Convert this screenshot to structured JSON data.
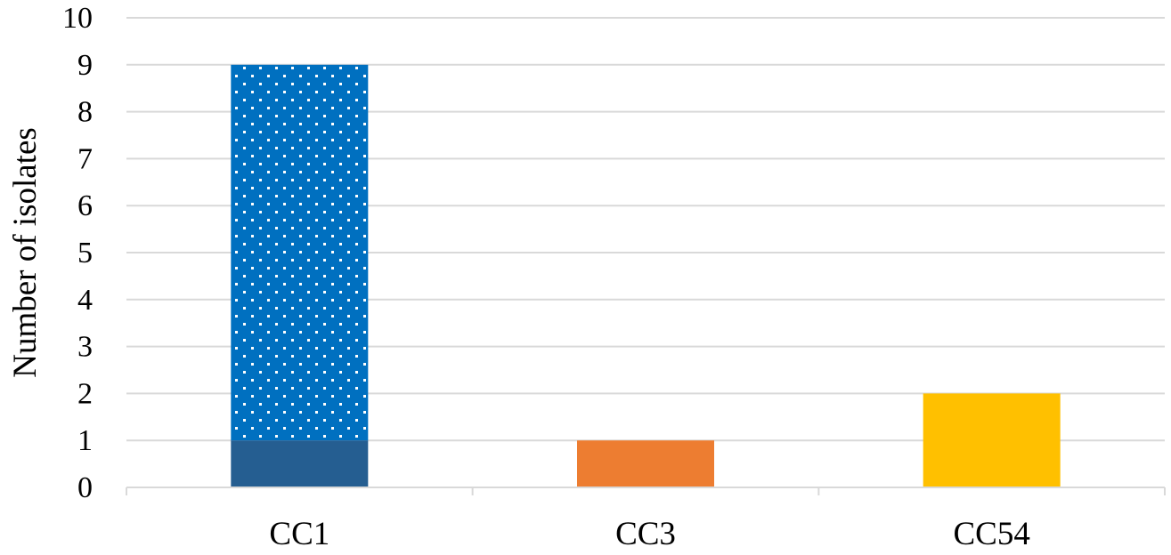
{
  "chart_data": {
    "type": "bar",
    "stacked": true,
    "categories": [
      "CC1",
      "CC3",
      "CC54"
    ],
    "bars": [
      {
        "category": "CC1",
        "segments": [
          {
            "value": 1,
            "color": "#255E91",
            "pattern": "solid"
          },
          {
            "value": 8,
            "color": "#0070C0",
            "pattern": "dotted"
          }
        ]
      },
      {
        "category": "CC3",
        "segments": [
          {
            "value": 1,
            "color": "#ED7D31",
            "pattern": "solid"
          }
        ]
      },
      {
        "category": "CC54",
        "segments": [
          {
            "value": 2,
            "color": "#FFC000",
            "pattern": "solid"
          }
        ]
      }
    ],
    "title": "",
    "xlabel": "",
    "ylabel": "Number of isolates",
    "ylim": [
      0,
      10
    ],
    "yticks": [
      0,
      1,
      2,
      3,
      4,
      5,
      6,
      7,
      8,
      9,
      10
    ],
    "grid": true,
    "legend": "none"
  }
}
